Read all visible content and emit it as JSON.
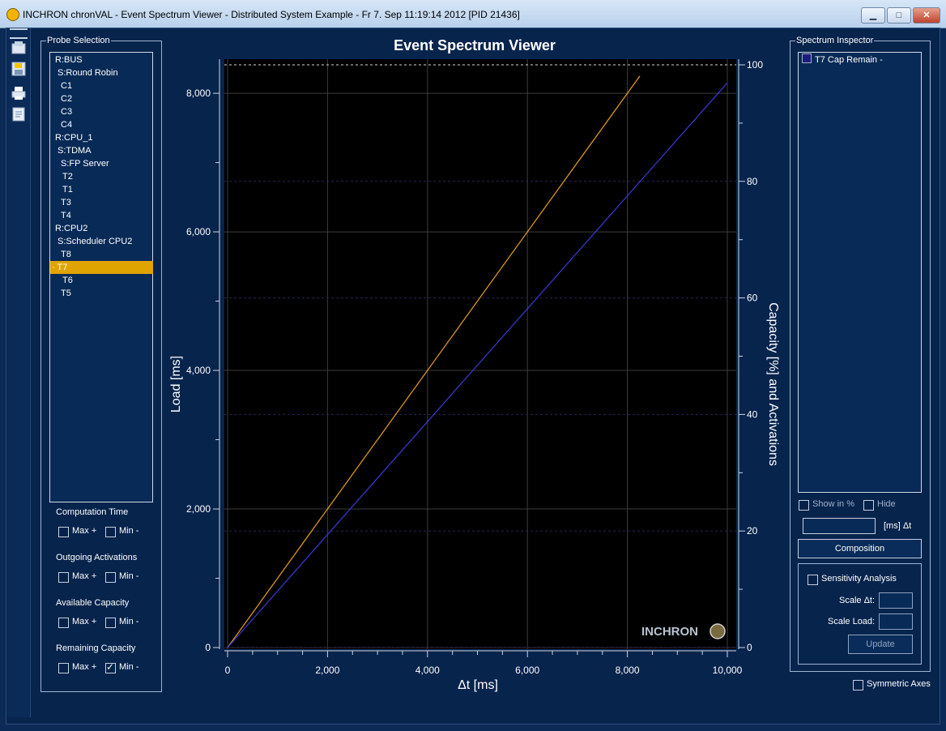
{
  "window": {
    "title": "INCHRON chronVAL - Event Spectrum Viewer - Distributed System Example - Fr 7. Sep 11:19:14 2012 [PID 21436]",
    "minimize": "▁",
    "maximize": "□",
    "close": "✕"
  },
  "toolbar": {
    "icons": [
      "open-icon",
      "save-icon",
      "print-icon",
      "export-icon"
    ]
  },
  "probe_selection": {
    "title": "Probe Selection",
    "items": [
      {
        "label": "R:BUS",
        "selected": false
      },
      {
        "label": "S:Round Robin",
        "selected": false
      },
      {
        "label": "C1",
        "selected": false
      },
      {
        "label": "C2",
        "selected": false
      },
      {
        "label": "C3",
        "selected": false
      },
      {
        "label": "C4",
        "selected": false
      },
      {
        "label": "R:CPU_1",
        "selected": false
      },
      {
        "label": "S:TDMA",
        "selected": false
      },
      {
        "label": "S:FP Server",
        "selected": false
      },
      {
        "label": "T2",
        "selected": false
      },
      {
        "label": "T1",
        "selected": false
      },
      {
        "label": "T3",
        "selected": false
      },
      {
        "label": "T4",
        "selected": false
      },
      {
        "label": "R:CPU2",
        "selected": false
      },
      {
        "label": "S:Scheduler CPU2",
        "selected": false
      },
      {
        "label": "T8",
        "selected": false
      },
      {
        "label": "· T7",
        "selected": true
      },
      {
        "label": "T6",
        "selected": false
      },
      {
        "label": "T5",
        "selected": false
      }
    ],
    "sections": [
      {
        "title": "Computation Time",
        "max_label": "Max +",
        "min_label": "Min -",
        "max_checked": false,
        "min_checked": false
      },
      {
        "title": "Outgoing Activations",
        "max_label": "Max +",
        "min_label": "Min -",
        "max_checked": false,
        "min_checked": false
      },
      {
        "title": "Available Capacity",
        "max_label": "Max +",
        "min_label": "Min -",
        "max_checked": false,
        "min_checked": false
      },
      {
        "title": "Remaining Capacity",
        "max_label": "Max +",
        "min_label": "Min -",
        "max_checked": false,
        "min_checked": true
      }
    ]
  },
  "spectrum_inspector": {
    "title": "Spectrum Inspector",
    "items": [
      "T7 Cap Remain -"
    ],
    "show_in_percent": "Show in %",
    "hide": "Hide",
    "dt_unit": "[ms] Δt",
    "composition_button": "Composition",
    "sensitivity_analysis": "Sensitivity Analysis",
    "scale_dt": "Scale Δt:",
    "scale_load": "Scale Load:",
    "update_button": "Update",
    "symmetric_axes": "Symmetric Axes"
  },
  "chart_data": {
    "type": "line",
    "title": "Event Spectrum Viewer",
    "xlabel": "Δt [ms]",
    "ylabel": "Load [ms]",
    "y2label": "Capacity [%] and Activations",
    "xlim": [
      0,
      10000
    ],
    "ylim": [
      0,
      8200
    ],
    "y2lim": [
      0,
      100
    ],
    "xticks": [
      0,
      2000,
      4000,
      6000,
      8000,
      10000
    ],
    "xtick_labels": [
      "0",
      "2,000",
      "4,000",
      "6,000",
      "8,000",
      "10,000"
    ],
    "yticks": [
      0,
      2000,
      4000,
      6000,
      8000
    ],
    "ytick_labels": [
      "0",
      "2,000",
      "4,000",
      "6,000",
      "8,000"
    ],
    "y2ticks": [
      0,
      20,
      40,
      60,
      80,
      100
    ],
    "y2tick_labels": [
      "0",
      "20",
      "40",
      "60",
      "80",
      "100"
    ],
    "grid": true,
    "series": [
      {
        "color": "#e8a020",
        "x": [
          0,
          8250
        ],
        "y": [
          0,
          8250
        ]
      },
      {
        "color": "#3a3ad8",
        "x": [
          0,
          10000
        ],
        "y": [
          0,
          8150
        ]
      }
    ],
    "reference_line": {
      "color": "#d8d8d8",
      "y2": 100
    },
    "watermark": "INCHRON"
  }
}
